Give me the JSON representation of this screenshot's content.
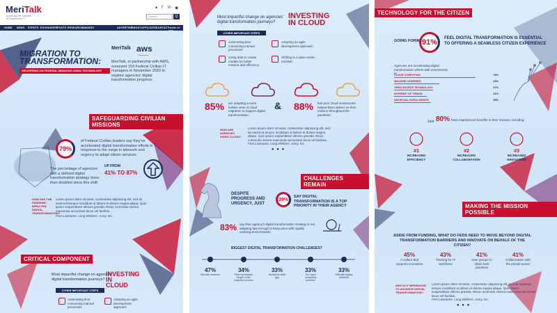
{
  "brand": {
    "name_a": "Meri",
    "name_b": "Talk",
    "tagline": "Improving the Outcome of Government IT",
    "partner_logo": "MeriTalk",
    "aws": "aws"
  },
  "header": {
    "search_placeholder": "Search...",
    "search_button": "Q"
  },
  "nav": [
    "HOME",
    "NEWS",
    "EVENTS",
    "EXCHANGES",
    "POSTS",
    "RESEARCH",
    "AWARDS",
    "ADVERTISE",
    "ABOUT",
    "AFFILIATES",
    "CONTACT",
    "TERMS OF USE"
  ],
  "panel1": {
    "hero_title_1": "MIGRATION TO",
    "hero_title_2": "TRANSFORMATION:",
    "hero_subtitle": "Delivering on Federal Missions Using Technology",
    "intro": "MeriTalk, in partnership with AWS, surveyed 153 Federal Civilian IT managers in November 2020 to explore agencies' digital transformation progress.",
    "section1": "Safeguarding Civilian Missions",
    "stat1_value": "79%",
    "stat1_text": "of Federal Civilian leaders say they've accelerated digital transformation efforts in response to the surge in telework and urgency to adapt citizen services",
    "stat2_text": "The percentage of agencies with a defined digital transformation strategy more than doubled since this shift",
    "stat2_up": "UP FROM",
    "stat2_from": "41%",
    "stat2_to": "TO 87%",
    "quote_label": "HOW HAS THE PANDEMIC IMPACTED DIGITAL TRANSFORMATION?",
    "quote_text": "Lorem ipsum dolor sit amet, consectetur adipiscing elit, sed do eiusmod tempor incididunt ut labore et dolore magna aliqua. Quis ipsum suspendisse ultrices gravida. Risus commodo viverra maecenas accumsan lacus vel facilisis.",
    "quote_author": "First Lastname, Long Wishers, Army, Inc.",
    "section2": "CRITICAL COMPONENT",
    "question": "Most impactful change on agencies' digital transformation journeys?",
    "investing": "INVESTING IN CLOUD",
    "steps_label": "OTHER IMPORTANT STEPS",
    "step_a": "Automating time consuming manual processes",
    "step_b": "Adopting an agile development approach"
  },
  "panel2": {
    "question": "Most impactful change on agencies' digital transformation journeys?",
    "investing": "INVESTING IN CLOUD",
    "steps_label": "OTHER IMPORTANT STEPS",
    "step_a": "Automating time consuming manual processes",
    "step_b": "Adopting an agile development approach",
    "step_c": "Using data to create models for better mission and efficiency",
    "step_d": "Shifting to a data-centric mindset",
    "stat_a_value": "85%",
    "stat_a_text": "are adopting a more holistic view of cloud migration to support digital transformation",
    "amp": "&",
    "stat_b_value": "88%",
    "stat_b_text": "feel prior cloud investments helped them deliver on their mission throughout the pandemic",
    "quote_label": "HOW ARE AGENCIES USING CLOUD?",
    "quote_text": "Lorem ipsum dolor sit amet, consectetur adipiscing elit, sed do eiusmod tempor incididunt ut labore et dolore magna aliqua. Quis ipsum suspendisse ultrices gravida. Risus commodo viverra maecenas accumsan lacus vel facilisis.",
    "quote_author": "First Lastname, Long Wishers, Army, Inc.",
    "section": "CHALLENGES REMAIN",
    "despite": "DESPITE PROGRESS AND URGENCY, JUST",
    "stat_c_value": "39%",
    "stat_c_text": "SAY DIGITAL TRANSFORMATION IS A TOP PRIORITY IN THEIR AGENCY",
    "stat_d_value": "83%",
    "stat_d_text": "say their agency's digital transformation strategy is not adapting fast enough to keep pace with rapidly evolving environments",
    "challenges_title": "BIGGEST DIGITAL TRANSFORMATION CHALLENGES?",
    "challenges": [
      {
        "value": "47%",
        "label": "Security concerns"
      },
      {
        "value": "34%",
        "label": "Time constraints/ length of the migration process"
      },
      {
        "value": "33%",
        "label": "Workforce skills gap"
      },
      {
        "value": "33%",
        "label": "Too many competing priorities"
      },
      {
        "value": "33%",
        "label": "Inflexible legacy networks"
      }
    ]
  },
  "panel3": {
    "section": "TECHNOLOGY FOR THE CITIZEN",
    "going_forward": "GOING FORWARD,",
    "stat_value": "91%",
    "stat_text": "FEEL DIGITAL TRANSFORMATION IS ESSENTIAL TO OFFERING A SEAMLESS CITIZEN EXPERIENCE",
    "accel_text": "Agencies are accelerating digital transformation efforts with investments in:",
    "investments": [
      {
        "label": "CLOUD COMPUTING",
        "value": "78%"
      },
      {
        "label": "MACHINE LEARNING",
        "value": "43%"
      },
      {
        "label": "OPEN SOURCE TECHNOLOGY",
        "value": "37%"
      },
      {
        "label": "INTERNET OF THINGS",
        "value": "31%"
      },
      {
        "label": "ARTIFICIAL INTELLIGENCE",
        "value": "35%"
      }
    ],
    "just": "Just",
    "benefit_value": "80%",
    "benefit_text": "have experienced benefits to their mission, including:",
    "benefits": [
      {
        "rank": "#1",
        "label": "INCREASED EFFICIENCY"
      },
      {
        "rank": "#2",
        "label": "INCREASED COLLABORATION"
      },
      {
        "rank": "#3",
        "label": "INCREASED INNOVATION"
      }
    ],
    "section2": "MAKING THE MISSION POSSIBLE",
    "aside": "ASIDE FROM FUNDING, WHAT DO FEDS NEED TO MOVE BEYOND DIGITAL TRANSFORMATION BARRIERS AND INNOVATE ON BEHALF OF THE CITIZEN?",
    "needs": [
      {
        "value": "45%",
        "label": "A culture that supports innovation"
      },
      {
        "value": "43%",
        "label": "Training for IT workforce"
      },
      {
        "value": "41%",
        "label": "User groups to share best practices"
      },
      {
        "value": "41%",
        "label": "Collaboration with the private sector"
      }
    ],
    "quote_label": "WHY IS IT IMPERATIVE TO ADVANCE DIGITAL TRANSFORMATION?",
    "quote_text": "Lorem ipsum dolor sit amet, consectetur adipiscing elit, sed do eiusmod tempor incididunt ut labore et dolore magna aliqua. Quis ipsum suspendisse ultrices gravida. Risus commodo viverra maecenas accumsan lacus vel facilisis.",
    "quote_author": "First Lastname, Long Wishers, Army, Inc."
  }
}
